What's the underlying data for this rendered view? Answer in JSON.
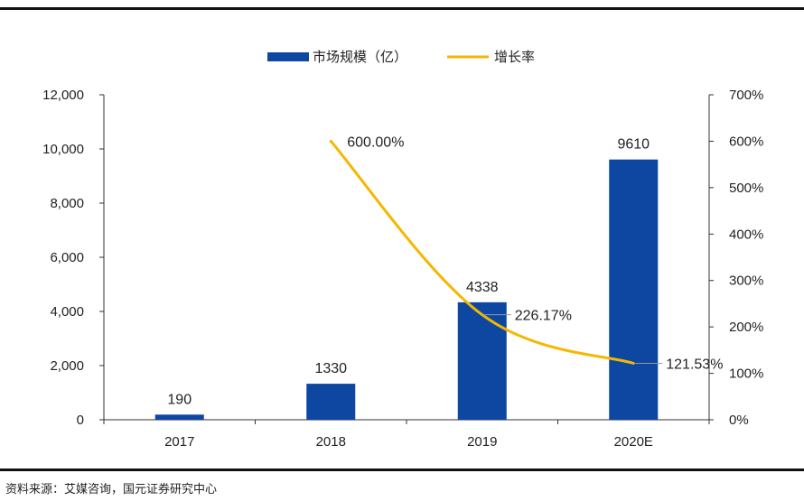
{
  "chart_data": {
    "type": "bar",
    "categories": [
      "2017",
      "2018",
      "2019",
      "2020E"
    ],
    "series": [
      {
        "name": "市场规模（亿）",
        "type": "bar",
        "axis": "left",
        "values": [
          190,
          1330,
          4338,
          9610
        ],
        "labels": [
          "190",
          "1330",
          "4338",
          "9610"
        ],
        "color": "#0D47A1"
      },
      {
        "name": "增长率",
        "type": "line",
        "axis": "right",
        "values": [
          null,
          600.0,
          226.17,
          121.53
        ],
        "labels": [
          "",
          "600.00%",
          "226.17%",
          "121.53%"
        ],
        "color": "#F5B700"
      }
    ],
    "y_left": {
      "ylim": [
        0,
        12000
      ],
      "ticks": [
        "0",
        "2,000",
        "4,000",
        "6,000",
        "8,000",
        "10,000",
        "12,000"
      ]
    },
    "y_right": {
      "ylim": [
        0,
        700
      ],
      "ticks": [
        "0%",
        "100%",
        "200%",
        "300%",
        "400%",
        "500%",
        "600%",
        "700%"
      ]
    },
    "grid": false,
    "legend_position": "top-center"
  },
  "footer": {
    "source": "资料来源：艾媒咨询，国元证券研究中心"
  }
}
